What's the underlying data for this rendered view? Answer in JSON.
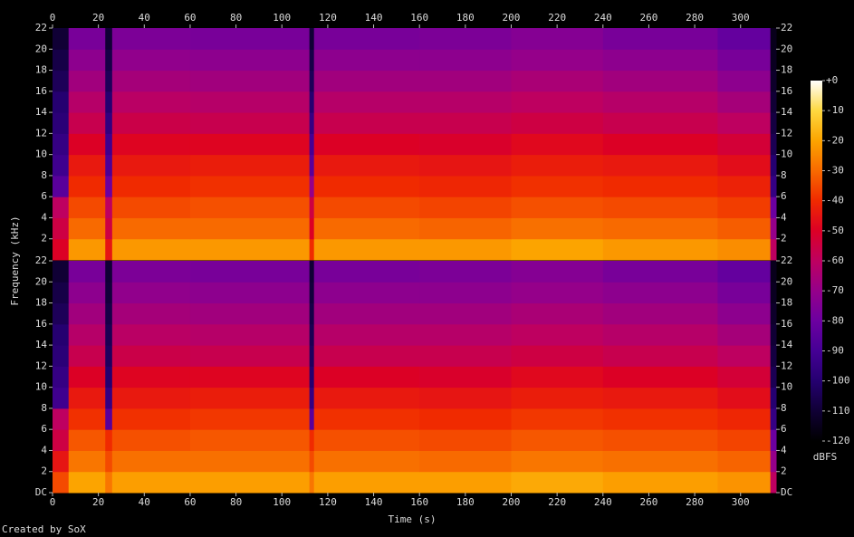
{
  "chart_data": {
    "type": "heatmap",
    "xlabel": "Time (s)",
    "ylabel": "Frequency (kHz)",
    "colorbar_label": "dBFS",
    "footer": "Created by SoX",
    "xlim": [
      0,
      315.5
    ],
    "xticks": [
      0,
      20,
      40,
      60,
      80,
      100,
      120,
      140,
      160,
      180,
      200,
      220,
      240,
      260,
      280,
      300
    ],
    "ylim": [
      0,
      22
    ],
    "zlim": [
      -120,
      0
    ],
    "zticks": [
      {
        "value": 0,
        "label": "+0"
      },
      -10,
      -20,
      -30,
      -40,
      -50,
      -60,
      -70,
      -80,
      -90,
      -100,
      -110,
      -120
    ],
    "colorscale": [
      "#000000",
      "#100035",
      "#250070",
      "#450095",
      "#6c00a0",
      "#95008a",
      "#be0060",
      "#dc0025",
      "#f02a00",
      "#f86a00",
      "#fca400",
      "#fed840",
      "#ffffff"
    ],
    "x": [
      0,
      7,
      23,
      26,
      60,
      112,
      114,
      160,
      200,
      240,
      290,
      313,
      315.5
    ],
    "y": [
      0,
      2,
      4,
      6,
      8,
      10,
      12,
      14,
      16,
      18,
      20,
      22
    ],
    "series": [
      {
        "yticks": [
          2,
          4,
          6,
          8,
          10,
          12,
          14,
          16,
          18,
          20,
          22
        ],
        "values": [
          [
            -50,
            -22,
            -45,
            -22,
            -22,
            -40,
            -22,
            -22,
            -20,
            -22,
            -24,
            -60
          ],
          [
            -55,
            -30,
            -55,
            -30,
            -30,
            -50,
            -30,
            -31,
            -29,
            -30,
            -32,
            -70
          ],
          [
            -60,
            -35,
            -60,
            -35,
            -34,
            -55,
            -35,
            -36,
            -34,
            -35,
            -37,
            -80
          ],
          [
            -85,
            -40,
            -80,
            -40,
            -39,
            -70,
            -40,
            -41,
            -39,
            -40,
            -42,
            -95
          ],
          [
            -92,
            -44,
            -88,
            -44,
            -43,
            -85,
            -44,
            -45,
            -43,
            -44,
            -47,
            -100
          ],
          [
            -95,
            -50,
            -92,
            -49,
            -49,
            -90,
            -50,
            -51,
            -48,
            -50,
            -53,
            -105
          ],
          [
            -98,
            -57,
            -96,
            -56,
            -57,
            -95,
            -57,
            -57,
            -55,
            -57,
            -60,
            -108
          ],
          [
            -100,
            -62,
            -100,
            -61,
            -62,
            -100,
            -62,
            -62,
            -60,
            -62,
            -66,
            -110
          ],
          [
            -104,
            -67,
            -104,
            -66,
            -67,
            -104,
            -67,
            -67,
            -65,
            -67,
            -72,
            -112
          ],
          [
            -107,
            -72,
            -107,
            -71,
            -72,
            -107,
            -72,
            -72,
            -70,
            -72,
            -77,
            -114
          ],
          [
            -110,
            -77,
            -110,
            -76,
            -77,
            -110,
            -77,
            -76,
            -74,
            -77,
            -82,
            -115
          ]
        ]
      },
      {
        "yticks": [
          {
            "value": 0,
            "label": "DC"
          },
          2,
          4,
          6,
          8,
          10,
          12,
          14,
          16,
          18,
          20,
          22
        ],
        "values": [
          [
            -35,
            -20,
            -28,
            -21,
            -21,
            -28,
            -21,
            -21,
            -19,
            -21,
            -23,
            -60
          ],
          [
            -45,
            -28,
            -35,
            -29,
            -29,
            -35,
            -29,
            -30,
            -28,
            -29,
            -31,
            -70
          ],
          [
            -55,
            -33,
            -40,
            -34,
            -33,
            -40,
            -34,
            -35,
            -33,
            -34,
            -36,
            -80
          ],
          [
            -60,
            -39,
            -85,
            -39,
            -38,
            -85,
            -39,
            -40,
            -38,
            -39,
            -41,
            -95
          ],
          [
            -92,
            -44,
            -95,
            -44,
            -43,
            -95,
            -44,
            -45,
            -43,
            -44,
            -47,
            -100
          ],
          [
            -95,
            -50,
            -100,
            -49,
            -49,
            -100,
            -50,
            -51,
            -48,
            -50,
            -53,
            -105
          ],
          [
            -98,
            -57,
            -103,
            -56,
            -57,
            -103,
            -57,
            -57,
            -55,
            -57,
            -60,
            -108
          ],
          [
            -100,
            -62,
            -105,
            -61,
            -62,
            -105,
            -62,
            -62,
            -60,
            -62,
            -66,
            -110
          ],
          [
            -104,
            -67,
            -107,
            -66,
            -67,
            -107,
            -67,
            -67,
            -65,
            -67,
            -72,
            -112
          ],
          [
            -107,
            -72,
            -109,
            -71,
            -72,
            -109,
            -72,
            -72,
            -70,
            -72,
            -77,
            -114
          ],
          [
            -110,
            -77,
            -110,
            -76,
            -77,
            -110,
            -77,
            -76,
            -74,
            -77,
            -82,
            -115
          ]
        ]
      }
    ]
  }
}
